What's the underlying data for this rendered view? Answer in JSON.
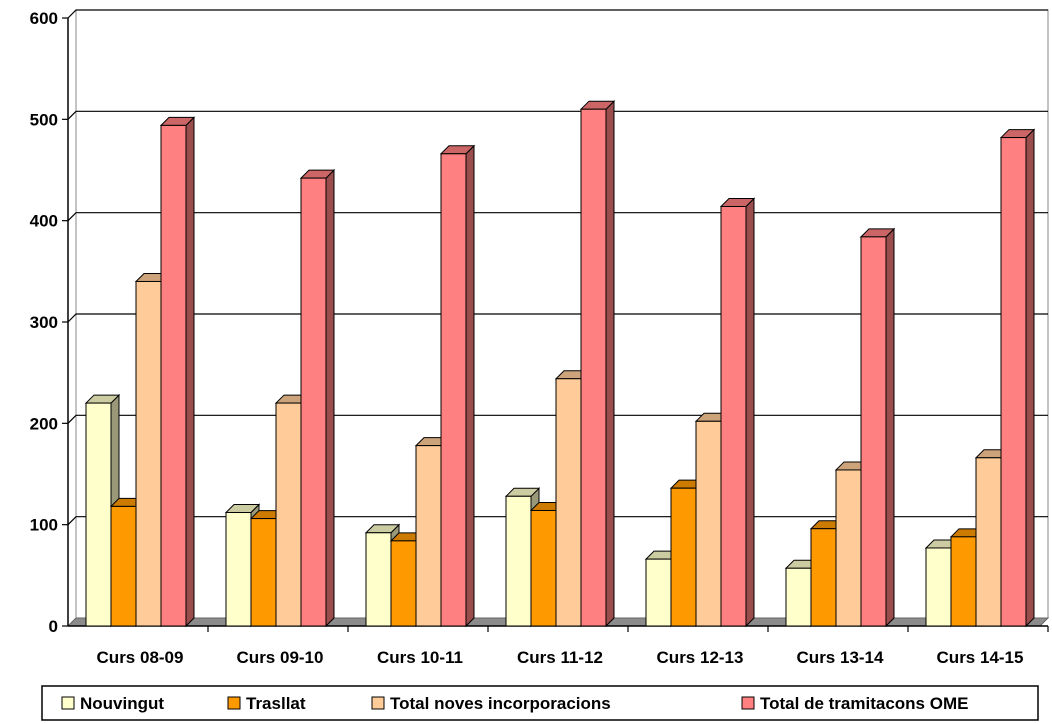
{
  "chart_data": {
    "type": "bar",
    "categories": [
      "Curs 08-09",
      "Curs 09-10",
      "Curs 10-11",
      "Curs 11-12",
      "Curs 12-13",
      "Curs 13-14",
      "Curs 14-15"
    ],
    "series": [
      {
        "name": "Nouvingut",
        "values": [
          220,
          112,
          92,
          128,
          66,
          57,
          77
        ],
        "color": "#FFFFCC"
      },
      {
        "name": "Trasllat",
        "values": [
          118,
          106,
          84,
          114,
          136,
          96,
          88
        ],
        "color": "#FF9900"
      },
      {
        "name": "Total noves incorporacions",
        "values": [
          340,
          220,
          178,
          244,
          202,
          154,
          166
        ],
        "color": "#FFCC99"
      },
      {
        "name": "Total de tramitacons OME",
        "values": [
          494,
          442,
          466,
          510,
          414,
          384,
          482
        ],
        "color": "#FF8080"
      }
    ],
    "ylim": [
      0,
      600
    ],
    "yticks": [
      "0",
      "100",
      "200",
      "300",
      "400",
      "500",
      "600"
    ],
    "grid": true,
    "legend_position": "bottom",
    "title": "",
    "xlabel": "",
    "ylabel": ""
  }
}
